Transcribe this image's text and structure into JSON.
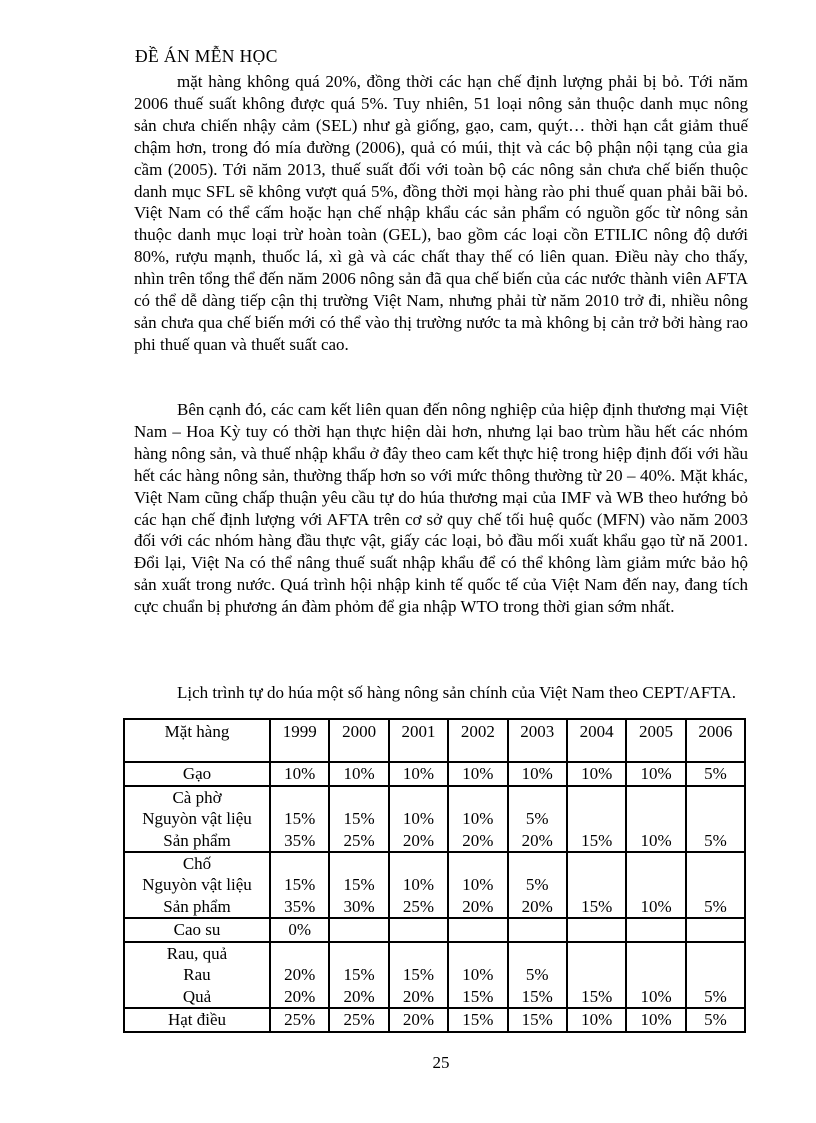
{
  "document": {
    "header_title": "ĐỀ ÁN MỄN HỌC",
    "page_number": "25",
    "paragraphs": [
      "mặt hàng không quá 20%, đồng thời các hạn chế định lượng phải bị bỏ. Tới năm 2006 thuế suất không được quá 5%. Tuy nhiên, 51 loại nông sản thuộc danh mục nông sản chưa chiến nhậy cảm (SEL) như gà giống, gạo, cam, quýt… thời hạn cắt giảm thuế chậm hơn, trong đó mía đường (2006), quả có múi, thịt và các bộ phận nội tạng của gia cầm (2005). Tới năm 2013, thuế suất đối với toàn bộ các nông sản chưa chế biến thuộc danh mục SFL sẽ không vượt quá 5%, đồng thời mọi hàng rào phi thuế quan phải bãi bỏ. Việt Nam có thể cấm hoặc hạn chế nhập khẩu các sản phẩm có nguồn gốc từ nông sản thuộc danh mục loại trừ hoàn toàn (GEL), bao gồm các loại cồn ETILIC nông độ dưới 80%, rượu mạnh, thuốc lá, xì gà và các chất thay thế có liên quan. Điều này cho thấy, nhìn trên tổng thể đến năm 2006 nông sản đã qua chế biến của các nước thành viên AFTA có thể dễ dàng tiếp cận thị trường Việt Nam, nhưng phải từ năm 2010 trở đi, nhiều nông sản chưa qua chế biến mới có thể vào thị trường nước ta mà không bị cản trở bởi hàng rao phi thuế quan và thuết suất cao.",
      "Bên cạnh đó, các cam kết liên quan đến nông nghiệp của hiệp định thương mại Việt Nam – Hoa Kỳ tuy có thời hạn thực hiện dài hơn, nhưng lại bao trùm hầu hết các nhóm hàng nông sản, và thuế nhập khẩu ở đây theo cam kết thực hiệ trong hiệp định đối với hầu hết các hàng nông sản, thường thấp hơn so với mức thông thường từ 20 – 40%. Mặt khác, Việt Nam cũng chấp thuận yêu cầu tự do húa thương mại của IMF và WB theo hướng bỏ các hạn chế định lượng với AFTA trên cơ sở quy chế tối huệ quốc (MFN) vào năm 2003 đối với các nhóm hàng đầu thực vật, giấy các loại, bỏ đầu mối xuất khẩu gạo từ nă 2001. Đổi lại, Việt Na có thể nâng thuế suất nhập khẩu để có thể không làm giảm mức bảo hộ sản xuất trong nước. Quá trình hội nhập kinh tế quốc tế của Việt Nam đến nay, đang tích cực chuẩn bị phương án đàm phỏm để gia nhập WTO trong thời gian sớm nhất.",
      "Lịch trình tự do húa một số hàng nông sản chính của Việt Nam theo CEPT/AFTA."
    ]
  },
  "table": {
    "header": [
      "Mặt hàng",
      "1999",
      "2000",
      "2001",
      "2002",
      "2003",
      "2004",
      "2005",
      "2006"
    ],
    "rows": [
      {
        "kind": "single",
        "label": "Gạo",
        "values": [
          "10%",
          "10%",
          "10%",
          "10%",
          "10%",
          "10%",
          "10%",
          "5%"
        ]
      },
      {
        "kind": "group",
        "group_label": "Cà phờ",
        "subrows": [
          {
            "label": "Nguyòn vật liệu",
            "values": [
              "15%",
              "15%",
              "10%",
              "10%",
              "5%",
              "",
              "",
              ""
            ]
          },
          {
            "label": "Sản phẩm",
            "values": [
              "35%",
              "25%",
              "20%",
              "20%",
              "20%",
              "15%",
              "10%",
              "5%"
            ]
          }
        ]
      },
      {
        "kind": "group",
        "group_label": "Chố",
        "subrows": [
          {
            "label": "Nguyòn vật liệu",
            "values": [
              "15%",
              "15%",
              "10%",
              "10%",
              "5%",
              "",
              "",
              ""
            ]
          },
          {
            "label": "Sản phẩm",
            "values": [
              "35%",
              "30%",
              "25%",
              "20%",
              "20%",
              "15%",
              "10%",
              "5%"
            ]
          }
        ]
      },
      {
        "kind": "single",
        "label": "Cao su",
        "values": [
          "0%",
          "",
          "",
          "",
          "",
          "",
          "",
          ""
        ]
      },
      {
        "kind": "group",
        "group_label": "Rau, quả",
        "subrows": [
          {
            "label": "Rau",
            "values": [
              "20%",
              "15%",
              "15%",
              "10%",
              "5%",
              "",
              "",
              ""
            ]
          },
          {
            "label": "Quả",
            "values": [
              "20%",
              "20%",
              "20%",
              "15%",
              "15%",
              "15%",
              "10%",
              "5%"
            ]
          }
        ]
      },
      {
        "kind": "single",
        "label": "Hạt điều",
        "values": [
          "25%",
          "25%",
          "20%",
          "15%",
          "15%",
          "10%",
          "10%",
          "5%"
        ]
      }
    ]
  },
  "colors": {
    "text": "#000000",
    "background": "#ffffff",
    "border": "#000000"
  }
}
